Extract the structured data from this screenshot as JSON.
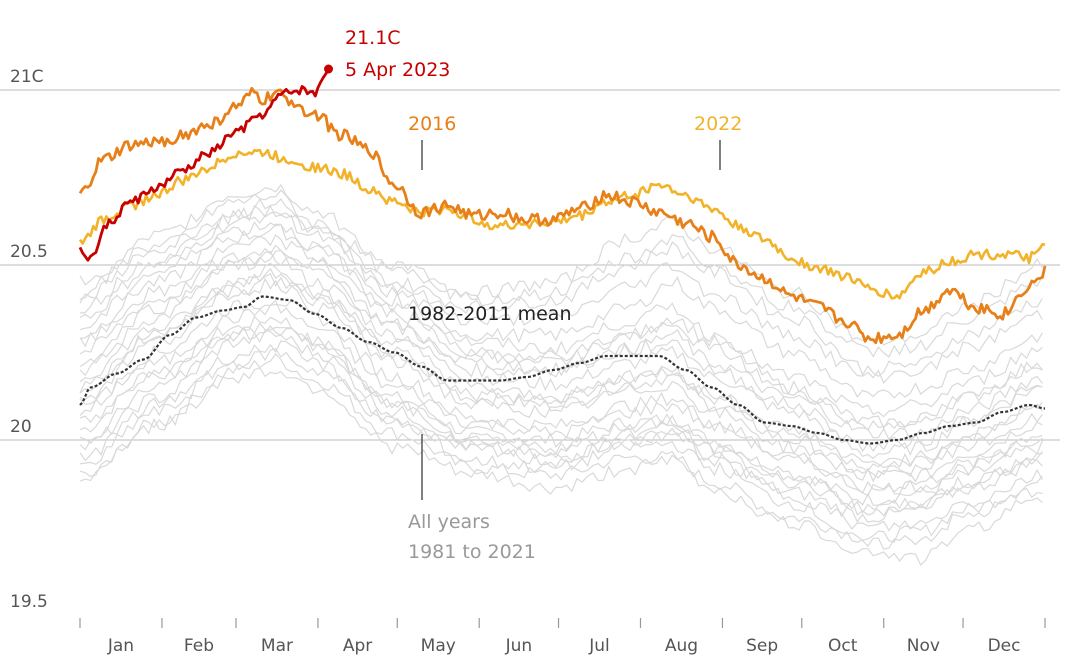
{
  "chart_data": {
    "type": "line",
    "title": "",
    "xlabel": "",
    "ylabel": "",
    "y_unit": "C",
    "ylim": [
      19.5,
      21.1
    ],
    "yticks": [
      {
        "value": 21.0,
        "label": "21C"
      },
      {
        "value": 20.5,
        "label": "20.5"
      },
      {
        "value": 20.0,
        "label": "20"
      },
      {
        "value": 19.5,
        "label": "19.5"
      }
    ],
    "months": [
      "Jan",
      "Feb",
      "Mar",
      "Apr",
      "May",
      "Jun",
      "Jul",
      "Aug",
      "Sep",
      "Oct",
      "Nov",
      "Dec"
    ],
    "x_unit": "day of year",
    "grid": "horizontal at 21C, 20.5, 20",
    "colors": {
      "y2023": "#c70000",
      "y2016": "#e8801a",
      "y2022": "#f2b32a",
      "mean": "#333333",
      "background_years": "#d9d9d9",
      "annotation_gray": "#999999",
      "grid": "#bbbbbb"
    },
    "series": [
      {
        "key": "2023",
        "x": [
          1,
          5,
          12,
          20,
          30,
          40,
          50,
          60,
          70,
          78,
          85,
          90,
          95
        ],
        "y": [
          20.54,
          20.52,
          20.62,
          20.68,
          20.72,
          20.77,
          20.82,
          20.88,
          20.93,
          20.99,
          21.0,
          20.99,
          21.06
        ]
      },
      {
        "key": "2016",
        "x": [
          1,
          10,
          20,
          30,
          40,
          50,
          60,
          67,
          70,
          75,
          80,
          90,
          100,
          110,
          120,
          130,
          140,
          150,
          160,
          170,
          180,
          190,
          200,
          210,
          220,
          230,
          240,
          250,
          260,
          270,
          280,
          290,
          300,
          310,
          320,
          330,
          340,
          350,
          360,
          366
        ],
        "y": [
          20.7,
          20.8,
          20.84,
          20.85,
          20.87,
          20.9,
          20.95,
          20.99,
          20.97,
          20.99,
          20.97,
          20.93,
          20.87,
          20.83,
          20.73,
          20.65,
          20.67,
          20.64,
          20.65,
          20.63,
          20.63,
          20.66,
          20.7,
          20.68,
          20.65,
          20.62,
          20.58,
          20.5,
          20.46,
          20.41,
          20.38,
          20.34,
          20.29,
          20.3,
          20.37,
          20.43,
          20.38,
          20.36,
          20.44,
          20.48
        ]
      },
      {
        "key": "2022",
        "x": [
          1,
          10,
          20,
          30,
          40,
          50,
          60,
          70,
          80,
          90,
          100,
          110,
          120,
          130,
          140,
          150,
          160,
          170,
          180,
          190,
          200,
          210,
          220,
          230,
          240,
          250,
          260,
          270,
          280,
          290,
          300,
          310,
          320,
          330,
          340,
          350,
          360,
          366
        ],
        "y": [
          20.56,
          20.63,
          20.67,
          20.7,
          20.74,
          20.78,
          20.82,
          20.82,
          20.8,
          20.78,
          20.76,
          20.72,
          20.68,
          20.65,
          20.66,
          20.63,
          20.61,
          20.62,
          20.62,
          20.64,
          20.68,
          20.7,
          20.73,
          20.7,
          20.66,
          20.61,
          20.57,
          20.52,
          20.49,
          20.47,
          20.43,
          20.41,
          20.48,
          20.51,
          20.53,
          20.53,
          20.52,
          20.55
        ]
      },
      {
        "key": "mean",
        "x": [
          1,
          5,
          15,
          25,
          35,
          45,
          55,
          63,
          70,
          80,
          90,
          100,
          110,
          120,
          130,
          140,
          150,
          160,
          170,
          180,
          190,
          200,
          210,
          220,
          230,
          240,
          250,
          260,
          270,
          280,
          290,
          300,
          310,
          320,
          330,
          340,
          350,
          360,
          366
        ],
        "y": [
          20.1,
          20.15,
          20.19,
          20.23,
          20.3,
          20.35,
          20.37,
          20.38,
          20.41,
          20.4,
          20.36,
          20.32,
          20.28,
          20.25,
          20.21,
          20.17,
          20.17,
          20.17,
          20.18,
          20.2,
          20.22,
          20.24,
          20.24,
          20.24,
          20.2,
          20.15,
          20.1,
          20.05,
          20.04,
          20.02,
          20.0,
          19.99,
          20.0,
          20.02,
          20.04,
          20.05,
          20.08,
          20.1,
          20.09
        ]
      }
    ],
    "background_x": [
      1,
      30,
      60,
      75,
      90,
      120,
      150,
      180,
      210,
      225,
      240,
      270,
      300,
      320,
      335,
      366
    ],
    "background_series": [
      {
        "y": [
          20.03,
          20.2,
          20.32,
          20.35,
          20.28,
          20.12,
          20.02,
          20.0,
          20.05,
          20.06,
          20.0,
          19.9,
          19.83,
          19.85,
          19.9,
          19.98
        ]
      },
      {
        "y": [
          19.88,
          20.05,
          20.2,
          20.23,
          20.17,
          20.02,
          19.92,
          19.9,
          19.95,
          19.95,
          19.88,
          19.78,
          19.72,
          19.74,
          19.8,
          19.88
        ]
      },
      {
        "y": [
          20.15,
          20.3,
          20.45,
          20.48,
          20.42,
          20.25,
          20.12,
          20.1,
          20.16,
          20.18,
          20.1,
          20.0,
          19.9,
          19.9,
          19.96,
          20.05
        ]
      },
      {
        "y": [
          20.2,
          20.35,
          20.5,
          20.52,
          20.45,
          20.3,
          20.18,
          20.16,
          20.22,
          20.25,
          20.18,
          20.08,
          19.96,
          19.98,
          20.05,
          20.15
        ]
      },
      {
        "y": [
          20.3,
          20.45,
          20.58,
          20.6,
          20.55,
          20.38,
          20.25,
          20.22,
          20.3,
          20.35,
          20.28,
          20.15,
          20.05,
          20.05,
          20.12,
          20.22
        ]
      },
      {
        "y": [
          19.98,
          20.12,
          20.28,
          20.3,
          20.25,
          20.08,
          19.98,
          19.95,
          20.0,
          20.02,
          19.95,
          19.85,
          19.78,
          19.8,
          19.86,
          19.94
        ]
      },
      {
        "y": [
          20.08,
          20.25,
          20.38,
          20.4,
          20.35,
          20.18,
          20.06,
          20.04,
          20.1,
          20.12,
          20.05,
          19.95,
          19.86,
          19.88,
          19.93,
          20.02
        ]
      },
      {
        "y": [
          20.25,
          20.4,
          20.52,
          20.55,
          20.5,
          20.33,
          20.2,
          20.2,
          20.26,
          20.3,
          20.22,
          20.12,
          20.02,
          20.02,
          20.08,
          20.18
        ]
      },
      {
        "y": [
          20.35,
          20.5,
          20.62,
          20.65,
          20.58,
          20.42,
          20.3,
          20.3,
          20.38,
          20.45,
          20.38,
          20.25,
          20.12,
          20.15,
          20.2,
          20.3
        ]
      },
      {
        "y": [
          20.45,
          20.55,
          20.65,
          20.68,
          20.6,
          20.45,
          20.38,
          20.4,
          20.5,
          20.55,
          20.48,
          20.35,
          20.2,
          20.22,
          20.3,
          20.4
        ]
      },
      {
        "y": [
          20.4,
          20.55,
          20.68,
          20.7,
          20.62,
          20.48,
          20.42,
          20.45,
          20.58,
          20.62,
          20.55,
          20.42,
          20.28,
          20.3,
          20.38,
          20.5
        ]
      },
      {
        "y": [
          19.92,
          20.08,
          20.22,
          20.25,
          20.2,
          20.05,
          19.94,
          19.92,
          19.98,
          19.99,
          19.92,
          19.82,
          19.7,
          19.72,
          19.78,
          19.86
        ]
      },
      {
        "y": [
          20.1,
          20.22,
          20.35,
          20.38,
          20.32,
          20.15,
          20.05,
          20.02,
          20.08,
          20.1,
          20.04,
          19.95,
          19.86,
          19.87,
          19.92,
          20.0
        ]
      },
      {
        "y": [
          20.18,
          20.32,
          20.45,
          20.5,
          20.42,
          20.28,
          20.15,
          20.12,
          20.18,
          20.2,
          20.12,
          20.02,
          19.93,
          19.94,
          20.0,
          20.1
        ]
      },
      {
        "y": [
          20.05,
          20.18,
          20.3,
          20.33,
          20.28,
          20.1,
          20.0,
          19.98,
          20.04,
          20.06,
          19.98,
          19.9,
          19.8,
          19.82,
          19.88,
          19.95
        ]
      },
      {
        "y": [
          20.32,
          20.48,
          20.6,
          20.62,
          20.55,
          20.4,
          20.28,
          20.26,
          20.34,
          20.38,
          20.3,
          20.18,
          20.08,
          20.1,
          20.16,
          20.26
        ]
      },
      {
        "y": [
          20.22,
          20.38,
          20.5,
          20.53,
          20.48,
          20.32,
          20.22,
          20.2,
          20.26,
          20.28,
          20.2,
          20.1,
          19.98,
          20.0,
          20.06,
          20.15
        ]
      },
      {
        "y": [
          19.95,
          20.1,
          20.24,
          20.27,
          20.22,
          20.05,
          19.97,
          19.94,
          20.0,
          20.02,
          19.94,
          19.84,
          19.75,
          19.76,
          19.82,
          19.9
        ]
      },
      {
        "y": [
          20.12,
          20.28,
          20.42,
          20.45,
          20.38,
          20.22,
          20.1,
          20.08,
          20.14,
          20.16,
          20.08,
          19.98,
          19.9,
          19.92,
          19.98,
          20.06
        ]
      },
      {
        "y": [
          20.28,
          20.42,
          20.55,
          20.57,
          20.52,
          20.36,
          20.24,
          20.24,
          20.3,
          20.32,
          20.26,
          20.14,
          20.04,
          20.06,
          20.12,
          20.22
        ]
      },
      {
        "y": [
          20.38,
          20.52,
          20.64,
          20.66,
          20.6,
          20.44,
          20.34,
          20.35,
          20.44,
          20.5,
          20.42,
          20.3,
          20.18,
          20.2,
          20.26,
          20.36
        ]
      },
      {
        "y": [
          20.0,
          20.15,
          20.3,
          20.32,
          20.27,
          20.1,
          20.0,
          19.97,
          20.02,
          20.04,
          19.97,
          19.88,
          19.8,
          19.82,
          19.87,
          19.96
        ]
      },
      {
        "y": [
          20.15,
          20.3,
          20.43,
          20.46,
          20.4,
          20.24,
          20.13,
          20.12,
          20.18,
          20.2,
          20.13,
          20.03,
          19.93,
          19.95,
          20.01,
          20.1
        ]
      },
      {
        "y": [
          19.9,
          20.04,
          20.18,
          20.2,
          20.15,
          19.98,
          19.9,
          19.86,
          19.92,
          19.94,
          19.86,
          19.76,
          19.68,
          19.66,
          19.74,
          19.84
        ]
      },
      {
        "y": [
          20.42,
          20.58,
          20.7,
          20.72,
          20.65,
          20.5,
          20.4,
          20.42,
          20.52,
          20.58,
          20.5,
          20.38,
          20.25,
          20.27,
          20.34,
          20.45
        ]
      }
    ]
  },
  "labels": {
    "record_value": "21.1C",
    "record_date": "5 Apr 2023",
    "y2016": "2016",
    "y2022": "2022",
    "mean": "1982-2011 mean",
    "all_years_line1": "All years",
    "all_years_line2": "1981 to 2021"
  }
}
